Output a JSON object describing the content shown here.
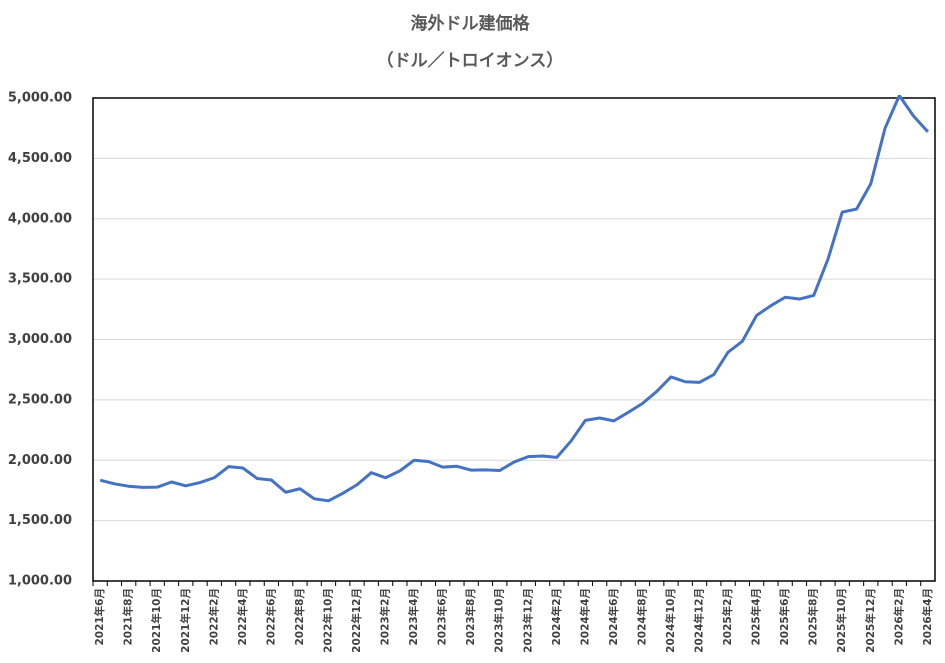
{
  "chart_data": {
    "type": "line",
    "title": "海外ドル建価格",
    "subtitle": "（ドル／トロイオンス）",
    "categories": [
      "2021年6月",
      null,
      "2021年8月",
      null,
      "2021年10月",
      null,
      "2021年12月",
      null,
      "2022年2月",
      null,
      "2022年4月",
      null,
      "2022年6月",
      null,
      "2022年8月",
      null,
      "2022年10月",
      null,
      "2022年12月",
      null,
      "2023年2月",
      null,
      "2023年4月",
      null,
      "2023年6月",
      null,
      "2023年8月",
      null,
      "2023年10月",
      null,
      "2023年12月",
      null,
      "2024年2月",
      null,
      "2024年4月",
      null,
      "2024年6月",
      null,
      "2024年8月",
      null,
      "2024年10月",
      null,
      "2024年12月",
      null,
      "2025年2月",
      null,
      "2025年4月",
      null,
      "2025年6月",
      null,
      "2025年8月",
      null,
      "2025年10月",
      null,
      "2025年12月",
      null,
      "2026年2月",
      null,
      "2026年4月"
    ],
    "series": [
      {
        "color": "#4472c4",
        "values": [
          1835,
          1805,
          1785,
          1775,
          1777,
          1820,
          1788,
          1815,
          1856,
          1947,
          1936,
          1849,
          1836,
          1735,
          1764,
          1681,
          1664,
          1726,
          1797,
          1897,
          1855,
          1912,
          2000,
          1990,
          1943,
          1950,
          1918,
          1920,
          1915,
          1985,
          2030,
          2035,
          2024,
          2160,
          2330,
          2350,
          2326,
          2396,
          2470,
          2570,
          2690,
          2650,
          2645,
          2710,
          2895,
          2985,
          3200,
          3280,
          3350,
          3335,
          3365,
          3665,
          4055,
          4080,
          4290,
          4750,
          5020,
          4850,
          4720
        ]
      }
    ],
    "ylim": [
      1000,
      5000
    ],
    "yticks": [
      {
        "value": 1000,
        "label": "1,000.00"
      },
      {
        "value": 1500,
        "label": "1,500.00"
      },
      {
        "value": 2000,
        "label": "2,000.00"
      },
      {
        "value": 2500,
        "label": "2,500.00"
      },
      {
        "value": 3000,
        "label": "3,000.00"
      },
      {
        "value": 3500,
        "label": "3,500.00"
      },
      {
        "value": 4000,
        "label": "4,000.00"
      },
      {
        "value": 4500,
        "label": "4,500.00"
      },
      {
        "value": 5000,
        "label": "5,000.00"
      }
    ],
    "grid": true
  }
}
